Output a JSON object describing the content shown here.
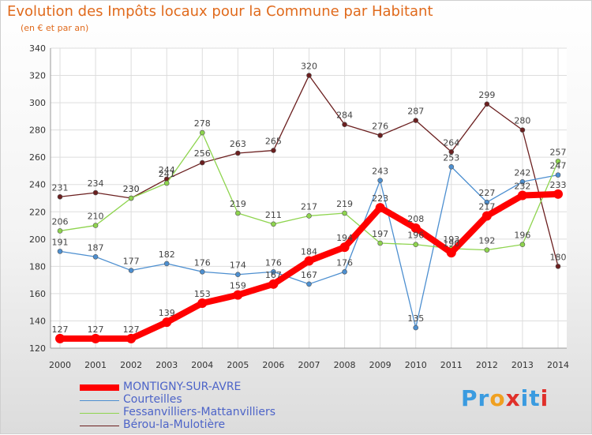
{
  "title": "Evolution des Impôts locaux pour la Commune par Habitant",
  "subtitle": "(en € et par an)",
  "logo": {
    "text": "Proxiti",
    "letters": [
      "P",
      "r",
      "o",
      "x",
      "i",
      "t",
      "i"
    ],
    "colors": [
      "#3a9be0",
      "#3a9be0",
      "#f0a020",
      "#e0302a",
      "#3a9be0",
      "#3a9be0",
      "#e0302a"
    ]
  },
  "chart_data": {
    "type": "line",
    "title": "Evolution des Impôts locaux pour la Commune par Habitant",
    "subtitle": "(en € et par an)",
    "categories": [
      "2000",
      "2001",
      "2002",
      "2003",
      "2004",
      "2005",
      "2006",
      "2007",
      "2008",
      "2009",
      "2010",
      "2011",
      "2012",
      "2013",
      "2014"
    ],
    "ylim": [
      120,
      340
    ],
    "yticks": [
      120,
      140,
      160,
      180,
      200,
      220,
      240,
      260,
      280,
      300,
      320,
      340
    ],
    "grid": true,
    "legend_position": "bottom-left",
    "series": [
      {
        "name": "MONTIGNY-SUR-AVRE",
        "color": "#ff0000",
        "values": [
          127,
          127,
          127,
          139,
          153,
          159,
          167,
          184,
          194,
          223,
          208,
          190,
          217,
          232,
          233
        ],
        "labels": [
          "127",
          "127",
          "127",
          "139",
          "153",
          "159",
          "167",
          "184",
          "194",
          "223",
          "208",
          "190",
          "217",
          "232",
          "233"
        ]
      },
      {
        "name": "Courteilles",
        "color": "#4d8fd0",
        "values": [
          191,
          187,
          177,
          182,
          176,
          174,
          176,
          167,
          176,
          243,
          135,
          253,
          227,
          242,
          247
        ],
        "labels": [
          "191",
          "187",
          "177",
          "182",
          "176",
          "174",
          "176",
          "167",
          "176",
          "243",
          "135",
          "253",
          "227",
          "242",
          "247"
        ]
      },
      {
        "name": "Fessanvilliers-Mattanvilliers",
        "color": "#8ed44e",
        "values": [
          206,
          210,
          230,
          241,
          278,
          219,
          211,
          217,
          219,
          197,
          196,
          193,
          192,
          196,
          257
        ],
        "labels": [
          "206",
          "210",
          "230",
          "241",
          "278",
          "219",
          "211",
          "217",
          "219",
          "197",
          "196",
          "193",
          "192",
          "196",
          "257"
        ]
      },
      {
        "name": "Bérou-la-Mulotière",
        "color": "#6b1f1f",
        "values": [
          231,
          234,
          230,
          244,
          256,
          263,
          265,
          320,
          284,
          276,
          287,
          264,
          299,
          280,
          180
        ],
        "labels": [
          "231",
          "234",
          "230",
          "244",
          "256",
          "263",
          "265",
          "320",
          "284",
          "276",
          "287",
          "264",
          "299",
          "280",
          "180"
        ]
      }
    ]
  }
}
